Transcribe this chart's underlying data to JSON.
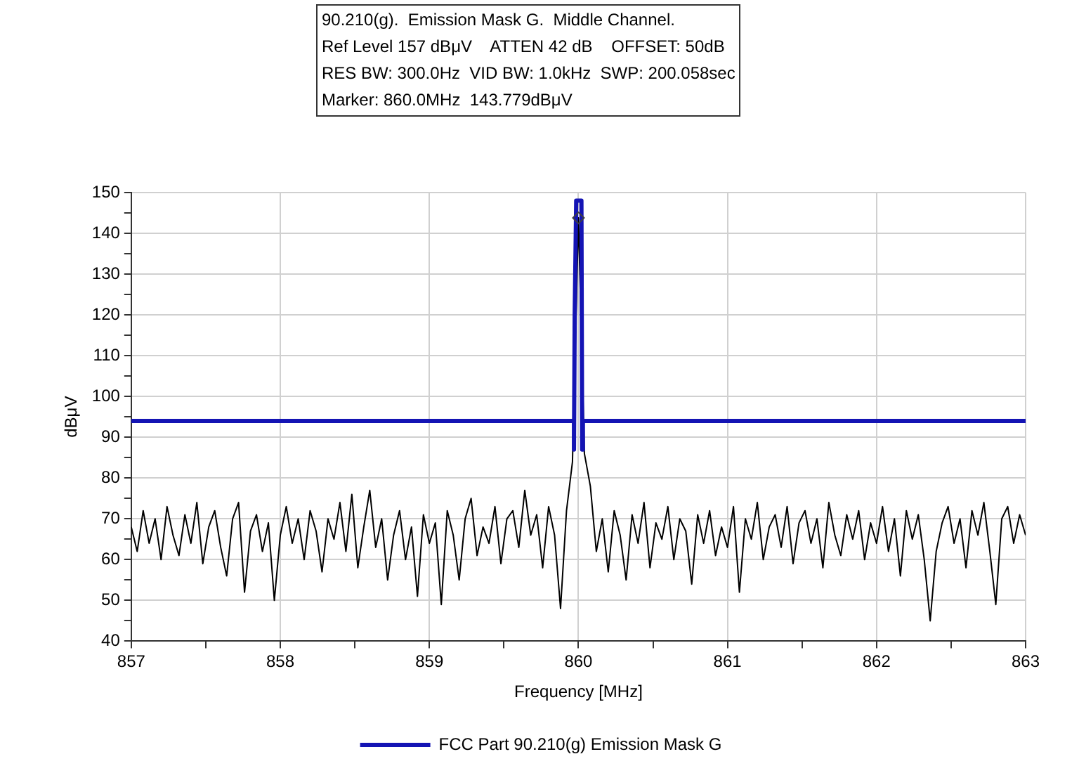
{
  "chart_data": {
    "type": "line",
    "title": "90.210(g).  Emission Mask G.  Middle Channel.",
    "annotations": [
      "Ref Level 157 dBμV    ATTEN 42 dB    OFFSET: 50dB",
      "RES BW: 300.0Hz  VID BW: 1.0kHz  SWP: 200.058sec",
      "Marker: 860.0MHz  143.779dBμV"
    ],
    "xlabel": "Frequency [MHz]",
    "ylabel": "dBμV",
    "x": [
      857,
      857.04,
      857.08,
      857.12,
      857.16,
      857.2,
      857.24,
      857.28,
      857.32,
      857.36,
      857.4,
      857.44,
      857.48,
      857.52,
      857.56,
      857.6,
      857.64,
      857.68,
      857.72,
      857.76,
      857.8,
      857.84,
      857.88,
      857.92,
      857.96,
      858,
      858.04,
      858.08,
      858.12,
      858.16,
      858.2,
      858.24,
      858.28,
      858.32,
      858.36,
      858.4,
      858.44,
      858.48,
      858.52,
      858.56,
      858.6,
      858.64,
      858.68,
      858.72,
      858.76,
      858.8,
      858.84,
      858.88,
      858.92,
      858.96,
      859,
      859.04,
      859.08,
      859.12,
      859.16,
      859.2,
      859.24,
      859.28,
      859.32,
      859.36,
      859.4,
      859.44,
      859.48,
      859.52,
      859.56,
      859.6,
      859.64,
      859.68,
      859.72,
      859.76,
      859.8,
      859.84,
      859.88,
      859.92,
      859.96,
      860,
      860.04,
      860.08,
      860.12,
      860.16,
      860.2,
      860.24,
      860.28,
      860.32,
      860.36,
      860.4,
      860.44,
      860.48,
      860.52,
      860.56,
      860.6,
      860.64,
      860.68,
      860.72,
      860.76,
      860.8,
      860.84,
      860.88,
      860.92,
      860.96,
      861,
      861.04,
      861.08,
      861.12,
      861.16,
      861.2,
      861.24,
      861.28,
      861.32,
      861.36,
      861.4,
      861.44,
      861.48,
      861.52,
      861.56,
      861.6,
      861.64,
      861.68,
      861.72,
      861.76,
      861.8,
      861.84,
      861.88,
      861.92,
      861.96,
      862,
      862.04,
      862.08,
      862.12,
      862.16,
      862.2,
      862.24,
      862.28,
      862.32,
      862.36,
      862.4,
      862.44,
      862.48,
      862.52,
      862.56,
      862.6,
      862.64,
      862.68,
      862.72,
      862.76,
      862.8,
      862.84,
      862.88,
      862.92,
      862.96,
      863
    ],
    "series": [
      {
        "color": "#000000",
        "values": [
          68,
          62,
          72,
          64,
          70,
          60,
          73,
          66,
          61,
          71,
          64,
          74,
          59,
          68,
          72,
          63,
          56,
          70,
          74,
          52,
          67,
          71,
          62,
          69,
          50,
          66,
          73,
          64,
          70,
          60,
          72,
          67,
          57,
          70,
          65,
          74,
          62,
          76,
          58,
          68,
          77,
          63,
          70,
          55,
          66,
          72,
          60,
          68,
          51,
          71,
          64,
          69,
          49,
          72,
          66,
          55,
          70,
          75,
          61,
          68,
          64,
          73,
          59,
          70,
          72,
          63,
          77,
          66,
          71,
          58,
          73,
          66,
          48,
          72,
          84,
          143.779,
          86,
          78,
          62,
          70,
          57,
          72,
          66,
          55,
          71,
          64,
          74,
          58,
          69,
          65,
          73,
          60,
          70,
          67,
          54,
          71,
          64,
          72,
          61,
          68,
          63,
          73,
          52,
          70,
          65,
          74,
          60,
          68,
          71,
          63,
          73,
          59,
          69,
          72,
          64,
          70,
          58,
          74,
          66,
          61,
          71,
          65,
          72,
          60,
          69,
          64,
          73,
          62,
          70,
          56,
          72,
          65,
          71,
          60,
          45,
          62,
          69,
          73,
          64,
          70,
          58,
          72,
          66,
          74,
          62,
          49,
          70,
          73,
          64,
          71,
          66
        ]
      },
      {
        "name": "FCC Part 90.210(g) Emission Mask G",
        "color": "#1414b4",
        "x": [
          857,
          859.97,
          859.97,
          859.975,
          859.985,
          860.02,
          860.025,
          860.03,
          863
        ],
        "values": [
          94,
          94,
          87,
          120,
          148,
          148,
          87,
          94,
          94
        ]
      },
      {
        "type": "scatter",
        "marker": "diamond",
        "color": "#404040",
        "x": [
          860
        ],
        "values": [
          143.779
        ]
      }
    ],
    "xlim": [
      857,
      863
    ],
    "xticks": [
      857,
      {
        "value": 857.5,
        "label": null
      },
      858,
      {
        "value": 858.5,
        "label": null
      },
      859,
      {
        "value": 859.5,
        "label": null
      },
      860,
      {
        "value": 860.5,
        "label": null
      },
      861,
      {
        "value": 861.5,
        "label": null
      },
      862,
      {
        "value": 862.5,
        "label": null
      },
      863
    ],
    "ylim": [
      40,
      150
    ],
    "yticks": [
      40,
      {
        "value": 45,
        "label": null
      },
      50,
      {
        "value": 55,
        "label": null
      },
      60,
      {
        "value": 65,
        "label": null
      },
      70,
      {
        "value": 75,
        "label": null
      },
      80,
      {
        "value": 85,
        "label": null
      },
      90,
      {
        "value": 95,
        "label": null
      },
      100,
      {
        "value": 105,
        "label": null
      },
      110,
      {
        "value": 115,
        "label": null
      },
      120,
      {
        "value": 125,
        "label": null
      },
      130,
      {
        "value": 135,
        "label": null
      },
      140,
      {
        "value": 145,
        "label": null
      },
      150
    ],
    "grid": true,
    "legend": "bottom",
    "marker": "none",
    "line_style": "solid"
  }
}
